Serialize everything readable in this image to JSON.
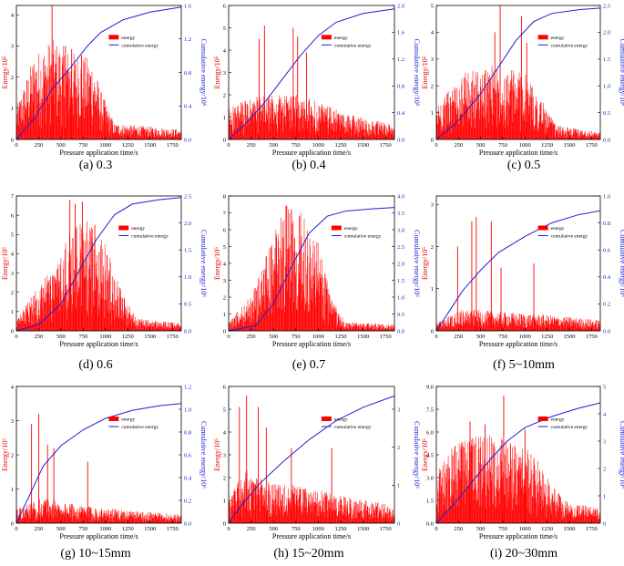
{
  "figure": {
    "x_label": "Pressure application time/s",
    "y_left_label": "Energy/10⁵",
    "y_right_label": "Cumulative energy/10⁶",
    "legend_energy": "energy",
    "legend_cumulative": "cumulative energy"
  },
  "colors": {
    "energy": "#ff0000",
    "cumulative": "#1f1fd6",
    "axis": "#000000"
  },
  "chart_data": [
    {
      "type": "bar+line",
      "caption": "(a) 0.3",
      "x_ticks": [
        "0",
        "250",
        "500",
        "750",
        "1000",
        "1250",
        "1500",
        "1750"
      ],
      "xlim": [
        0,
        1850
      ],
      "y_left_ticks": [
        "0",
        "1",
        "2",
        "3",
        "4"
      ],
      "y_left_lim": [
        0,
        4.3
      ],
      "y_right_ticks": [
        "0.0",
        "0.4",
        "0.8",
        "1.2",
        "1.6"
      ],
      "y_right_lim": [
        0,
        1.6
      ],
      "energy_profile": [
        [
          0,
          0.8
        ],
        [
          200,
          2.1
        ],
        [
          400,
          2.5
        ],
        [
          600,
          2.2
        ],
        [
          850,
          2.0
        ],
        [
          950,
          1.2
        ],
        [
          1100,
          0.4
        ],
        [
          1850,
          0.25
        ]
      ],
      "energy_peaks": [
        [
          400,
          4.3
        ],
        [
          550,
          3.0
        ],
        [
          620,
          2.9
        ],
        [
          730,
          2.7
        ]
      ],
      "cumulative": [
        [
          0,
          0
        ],
        [
          200,
          0.25
        ],
        [
          400,
          0.6
        ],
        [
          600,
          0.85
        ],
        [
          800,
          1.12
        ],
        [
          950,
          1.28
        ],
        [
          1200,
          1.43
        ],
        [
          1500,
          1.52
        ],
        [
          1850,
          1.58
        ]
      ],
      "legend": "top-center"
    },
    {
      "type": "bar+line",
      "caption": "(b) 0.4",
      "x_ticks": [
        "0",
        "250",
        "500",
        "750",
        "1000",
        "1250",
        "1500",
        "1750"
      ],
      "xlim": [
        0,
        1850
      ],
      "y_left_ticks": [
        "0",
        "1",
        "2",
        "3",
        "4",
        "5",
        "6"
      ],
      "y_left_lim": [
        0,
        6
      ],
      "y_right_ticks": [
        "0.0",
        "0.4",
        "0.8",
        "1.2",
        "1.6",
        "2.0"
      ],
      "y_right_lim": [
        0,
        2.0
      ],
      "energy_profile": [
        [
          0,
          1.1
        ],
        [
          300,
          1.5
        ],
        [
          700,
          1.6
        ],
        [
          1000,
          1.3
        ],
        [
          1300,
          0.9
        ],
        [
          1850,
          0.5
        ]
      ],
      "energy_peaks": [
        [
          340,
          4.5
        ],
        [
          400,
          5.1
        ],
        [
          720,
          5.0
        ],
        [
          770,
          4.6
        ],
        [
          870,
          3.9
        ]
      ],
      "cumulative": [
        [
          0,
          0
        ],
        [
          200,
          0.25
        ],
        [
          400,
          0.55
        ],
        [
          600,
          0.9
        ],
        [
          800,
          1.25
        ],
        [
          1000,
          1.55
        ],
        [
          1200,
          1.75
        ],
        [
          1500,
          1.88
        ],
        [
          1850,
          1.95
        ]
      ],
      "legend": "top-center"
    },
    {
      "type": "bar+line",
      "caption": "(c) 0.5",
      "x_ticks": [
        "0",
        "250",
        "500",
        "750",
        "1000",
        "1250",
        "1500",
        "1750"
      ],
      "xlim": [
        0,
        1850
      ],
      "y_left_ticks": [
        "0",
        "1",
        "2",
        "3",
        "4",
        "5"
      ],
      "y_left_lim": [
        0,
        5
      ],
      "y_right_ticks": [
        "0.0",
        "0.5",
        "1.0",
        "1.5",
        "2.0",
        "2.5"
      ],
      "y_right_lim": [
        0,
        2.5
      ],
      "energy_profile": [
        [
          0,
          1.0
        ],
        [
          300,
          1.9
        ],
        [
          700,
          2.2
        ],
        [
          1000,
          1.9
        ],
        [
          1200,
          1.1
        ],
        [
          1350,
          0.4
        ],
        [
          1850,
          0.2
        ]
      ],
      "energy_peaks": [
        [
          660,
          4.0
        ],
        [
          720,
          5.0
        ],
        [
          960,
          4.6
        ],
        [
          1020,
          3.6
        ]
      ],
      "cumulative": [
        [
          0,
          0
        ],
        [
          250,
          0.35
        ],
        [
          500,
          0.85
        ],
        [
          700,
          1.35
        ],
        [
          900,
          1.85
        ],
        [
          1100,
          2.2
        ],
        [
          1300,
          2.35
        ],
        [
          1600,
          2.42
        ],
        [
          1850,
          2.45
        ]
      ],
      "legend": "top-right"
    },
    {
      "type": "bar+line",
      "caption": "(d) 0.6",
      "x_ticks": [
        "0",
        "250",
        "500",
        "750",
        "1000",
        "1250",
        "1500",
        "1750"
      ],
      "xlim": [
        0,
        1850
      ],
      "y_left_ticks": [
        "0",
        "1",
        "2",
        "3",
        "4",
        "5",
        "6",
        "7"
      ],
      "y_left_lim": [
        0,
        7
      ],
      "y_right_ticks": [
        "0.0",
        "0.5",
        "1.0",
        "1.5",
        "2.0",
        "2.5"
      ],
      "y_right_lim": [
        0,
        2.5
      ],
      "energy_profile": [
        [
          0,
          0.4
        ],
        [
          200,
          1.6
        ],
        [
          450,
          2.7
        ],
        [
          650,
          4.3
        ],
        [
          800,
          4.5
        ],
        [
          1000,
          3.5
        ],
        [
          1200,
          1.5
        ],
        [
          1350,
          0.5
        ],
        [
          1850,
          0.3
        ]
      ],
      "energy_peaks": [
        [
          600,
          6.8
        ],
        [
          660,
          6.6
        ],
        [
          740,
          6.7
        ],
        [
          880,
          5.5
        ]
      ],
      "cumulative": [
        [
          0,
          0
        ],
        [
          250,
          0.12
        ],
        [
          500,
          0.5
        ],
        [
          700,
          1.1
        ],
        [
          900,
          1.7
        ],
        [
          1100,
          2.15
        ],
        [
          1300,
          2.35
        ],
        [
          1600,
          2.43
        ],
        [
          1850,
          2.47
        ]
      ],
      "legend": "top-right"
    },
    {
      "type": "bar+line",
      "caption": "(e) 0.7",
      "x_ticks": [
        "0",
        "250",
        "500",
        "750",
        "1000",
        "1250",
        "1500",
        "1750"
      ],
      "xlim": [
        0,
        1850
      ],
      "y_left_ticks": [
        "0",
        "1",
        "2",
        "3",
        "4",
        "5",
        "6",
        "7",
        "8"
      ],
      "y_left_lim": [
        0,
        8
      ],
      "y_right_ticks": [
        "0.0",
        "0.5",
        "1.0",
        "1.5",
        "2.0",
        "2.5",
        "3.0",
        "3.5",
        "4.0"
      ],
      "y_right_lim": [
        0,
        4.0
      ],
      "energy_profile": [
        [
          0,
          0.4
        ],
        [
          250,
          1.6
        ],
        [
          450,
          3.8
        ],
        [
          650,
          6.0
        ],
        [
          800,
          5.8
        ],
        [
          1000,
          4.0
        ],
        [
          1150,
          1.5
        ],
        [
          1300,
          0.4
        ],
        [
          1850,
          0.3
        ]
      ],
      "energy_peaks": [
        [
          640,
          7.4
        ],
        [
          700,
          7.2
        ],
        [
          790,
          6.8
        ]
      ],
      "cumulative": [
        [
          0,
          0
        ],
        [
          300,
          0.15
        ],
        [
          500,
          0.8
        ],
        [
          700,
          1.9
        ],
        [
          900,
          2.9
        ],
        [
          1100,
          3.4
        ],
        [
          1300,
          3.55
        ],
        [
          1600,
          3.62
        ],
        [
          1850,
          3.66
        ]
      ],
      "legend": "top-right"
    },
    {
      "type": "bar+line",
      "caption": "(f) 5~10mm",
      "x_ticks": [
        "0",
        "250",
        "500",
        "750",
        "1000",
        "1250",
        "1500",
        "1750"
      ],
      "xlim": [
        0,
        1850
      ],
      "y_left_ticks": [
        "0",
        "1",
        "2",
        "3"
      ],
      "y_left_lim": [
        0,
        3.2
      ],
      "y_right_ticks": [
        "0.0",
        "0.2",
        "0.4",
        "0.6",
        "0.8",
        "1.0"
      ],
      "y_right_lim": [
        0,
        1.0
      ],
      "energy_profile": [
        [
          0,
          0.15
        ],
        [
          300,
          0.4
        ],
        [
          700,
          0.35
        ],
        [
          1200,
          0.3
        ],
        [
          1850,
          0.2
        ]
      ],
      "energy_peaks": [
        [
          240,
          2.0
        ],
        [
          400,
          2.6
        ],
        [
          450,
          2.7
        ],
        [
          620,
          2.6
        ],
        [
          730,
          1.5
        ],
        [
          1100,
          1.6
        ]
      ],
      "cumulative": [
        [
          0,
          0
        ],
        [
          150,
          0.15
        ],
        [
          300,
          0.3
        ],
        [
          500,
          0.45
        ],
        [
          700,
          0.58
        ],
        [
          1000,
          0.7
        ],
        [
          1300,
          0.8
        ],
        [
          1600,
          0.86
        ],
        [
          1850,
          0.89
        ]
      ],
      "legend": "top-right"
    },
    {
      "type": "bar+line",
      "caption": "(g) 10~15mm",
      "x_ticks": [
        "0",
        "250",
        "500",
        "750",
        "1000",
        "1250",
        "1500",
        "1750"
      ],
      "xlim": [
        0,
        1850
      ],
      "y_left_ticks": [
        "0",
        "1",
        "2",
        "3",
        "4"
      ],
      "y_left_lim": [
        0,
        4
      ],
      "y_right_ticks": [
        "0.0",
        "0.2",
        "0.4",
        "0.6",
        "0.8",
        "1.0",
        "1.2"
      ],
      "y_right_lim": [
        0,
        1.2
      ],
      "energy_profile": [
        [
          0,
          0.3
        ],
        [
          300,
          0.6
        ],
        [
          700,
          0.4
        ],
        [
          1200,
          0.3
        ],
        [
          1850,
          0.2
        ]
      ],
      "energy_peaks": [
        [
          170,
          2.9
        ],
        [
          250,
          3.2
        ],
        [
          350,
          2.3
        ],
        [
          420,
          2.2
        ],
        [
          800,
          1.8
        ]
      ],
      "cumulative": [
        [
          0,
          0
        ],
        [
          150,
          0.25
        ],
        [
          300,
          0.5
        ],
        [
          500,
          0.68
        ],
        [
          750,
          0.82
        ],
        [
          1000,
          0.92
        ],
        [
          1300,
          0.99
        ],
        [
          1600,
          1.03
        ],
        [
          1850,
          1.05
        ]
      ],
      "legend": "top-center"
    },
    {
      "type": "bar+line",
      "caption": "(h) 15~20mm",
      "x_ticks": [
        "0",
        "250",
        "500",
        "750",
        "1000",
        "1250",
        "1500",
        "1750"
      ],
      "xlim": [
        0,
        1850
      ],
      "y_left_ticks": [
        "0",
        "1",
        "2",
        "3",
        "4",
        "5",
        "6"
      ],
      "y_left_lim": [
        0,
        6
      ],
      "y_right_ticks": [
        "0",
        "1",
        "2",
        "3"
      ],
      "y_right_lim": [
        0,
        3.6
      ],
      "energy_profile": [
        [
          0,
          1.0
        ],
        [
          200,
          1.8
        ],
        [
          500,
          1.4
        ],
        [
          900,
          1.2
        ],
        [
          1300,
          0.9
        ],
        [
          1850,
          0.6
        ]
      ],
      "energy_peaks": [
        [
          120,
          5.1
        ],
        [
          200,
          5.6
        ],
        [
          330,
          5.1
        ],
        [
          420,
          4.2
        ],
        [
          700,
          3.3
        ],
        [
          1150,
          3.3
        ]
      ],
      "cumulative": [
        [
          0,
          0
        ],
        [
          150,
          0.5
        ],
        [
          350,
          1.05
        ],
        [
          600,
          1.6
        ],
        [
          900,
          2.2
        ],
        [
          1200,
          2.7
        ],
        [
          1500,
          3.05
        ],
        [
          1850,
          3.35
        ]
      ],
      "legend": "top-center"
    },
    {
      "type": "bar+line",
      "caption": "(i) 20~30mm",
      "x_ticks": [
        "0",
        "250",
        "500",
        "750",
        "1000",
        "1250",
        "1500",
        "1750"
      ],
      "xlim": [
        0,
        1850
      ],
      "y_left_ticks": [
        "0.0",
        "1.5",
        "3.0",
        "4.5",
        "6.0",
        "7.5",
        "9.0"
      ],
      "y_left_lim": [
        0,
        9
      ],
      "y_right_ticks": [
        "0",
        "1",
        "2",
        "3",
        "4",
        "5"
      ],
      "y_right_lim": [
        0,
        5
      ],
      "energy_profile": [
        [
          0,
          2.5
        ],
        [
          200,
          4.0
        ],
        [
          500,
          4.6
        ],
        [
          800,
          4.4
        ],
        [
          1100,
          3.5
        ],
        [
          1300,
          2.0
        ],
        [
          1500,
          1.0
        ],
        [
          1850,
          0.8
        ]
      ],
      "energy_peaks": [
        [
          380,
          6.7
        ],
        [
          550,
          6.5
        ],
        [
          760,
          8.4
        ],
        [
          1000,
          6.2
        ]
      ],
      "cumulative": [
        [
          0,
          0
        ],
        [
          200,
          0.7
        ],
        [
          400,
          1.5
        ],
        [
          600,
          2.3
        ],
        [
          800,
          3.0
        ],
        [
          1000,
          3.5
        ],
        [
          1300,
          3.9
        ],
        [
          1600,
          4.2
        ],
        [
          1850,
          4.4
        ]
      ],
      "legend": "top-right"
    }
  ]
}
